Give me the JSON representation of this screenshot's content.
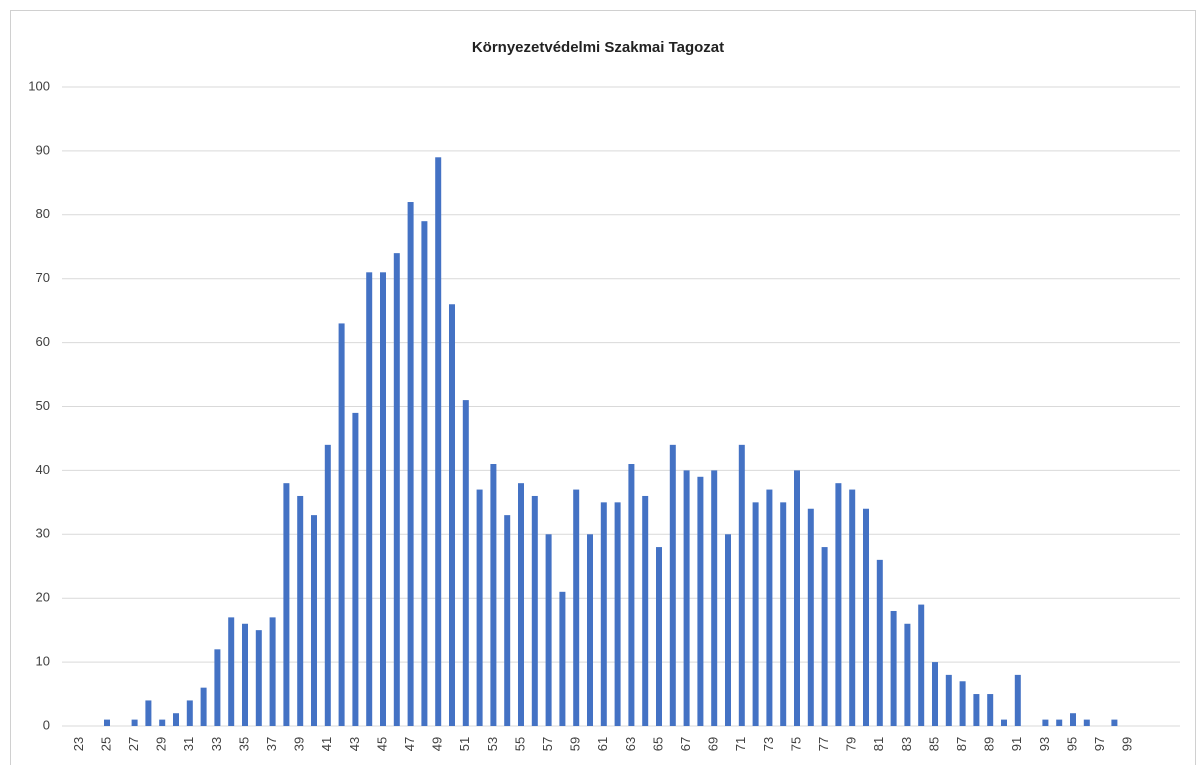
{
  "chart_data": {
    "type": "bar",
    "title": "Környezetvédelmi Szakmai Tagozat",
    "categories": [
      "23",
      null,
      "25",
      null,
      "27",
      null,
      "29",
      null,
      "31",
      null,
      "33",
      null,
      "35",
      null,
      "37",
      null,
      "39",
      null,
      "41",
      null,
      "43",
      null,
      "45",
      null,
      "47",
      null,
      "49",
      null,
      "51",
      null,
      "53",
      null,
      "55",
      null,
      "57",
      null,
      "59",
      null,
      "61",
      null,
      "63",
      null,
      "65",
      null,
      "67",
      null,
      "69",
      null,
      "71",
      null,
      "73",
      null,
      "75",
      null,
      "77",
      null,
      "79",
      null,
      "81",
      null,
      "83",
      null,
      "85",
      null,
      "87",
      null,
      "89",
      null,
      "91",
      null,
      "93",
      null,
      "95",
      null,
      "97",
      null,
      "99"
    ],
    "values": [
      0,
      0,
      1,
      0,
      1,
      4,
      1,
      2,
      4,
      6,
      12,
      17,
      16,
      15,
      17,
      38,
      36,
      33,
      44,
      63,
      49,
      71,
      71,
      74,
      82,
      79,
      89,
      66,
      51,
      37,
      41,
      33,
      38,
      36,
      30,
      21,
      37,
      30,
      35,
      35,
      41,
      36,
      28,
      44,
      40,
      39,
      40,
      30,
      44,
      35,
      37,
      35,
      40,
      34,
      28,
      38,
      37,
      34,
      26,
      18,
      16,
      19,
      10,
      8,
      7,
      5,
      5,
      1,
      8,
      0,
      1,
      1,
      2,
      1,
      0,
      1,
      0
    ],
    "color": "#4472c4",
    "ylim": [
      0,
      100
    ],
    "yticks": [
      0,
      10,
      20,
      30,
      40,
      50,
      60,
      70,
      80,
      90,
      100
    ],
    "grid": true
  }
}
